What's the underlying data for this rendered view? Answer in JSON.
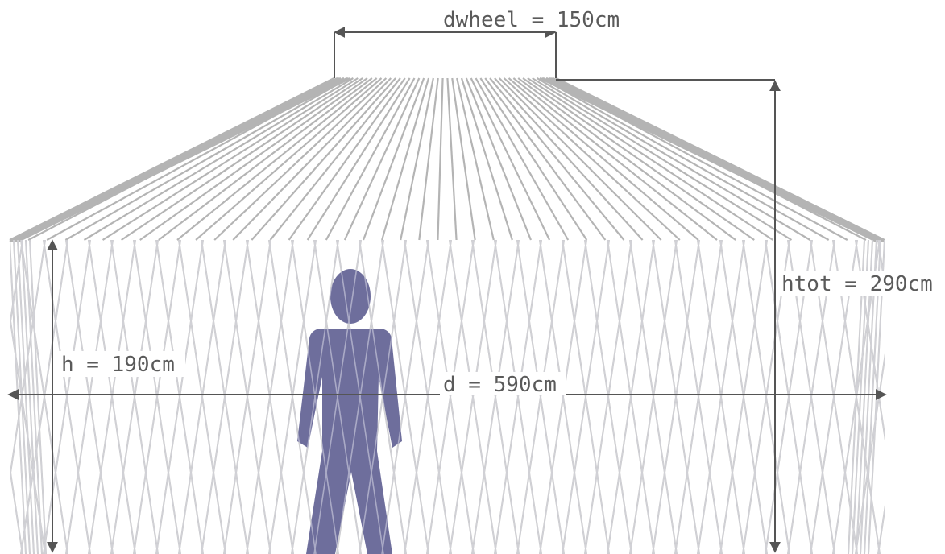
{
  "labels": {
    "dwheel": "dwheel = 150cm",
    "htot": "htot = 290cm",
    "h": "h = 190cm",
    "d": "d = 590cm"
  },
  "dimensions_cm": {
    "dwheel": 150,
    "htot": 290,
    "h": 190,
    "d": 590
  },
  "colors": {
    "roof_poles": "#b4b4b4",
    "lattice": "#bdbdbd",
    "person": "#6e6e9c",
    "dimension_lines": "#555555",
    "label_text": "#5a5a5a"
  },
  "icons": {
    "person": "person-silhouette-icon"
  }
}
